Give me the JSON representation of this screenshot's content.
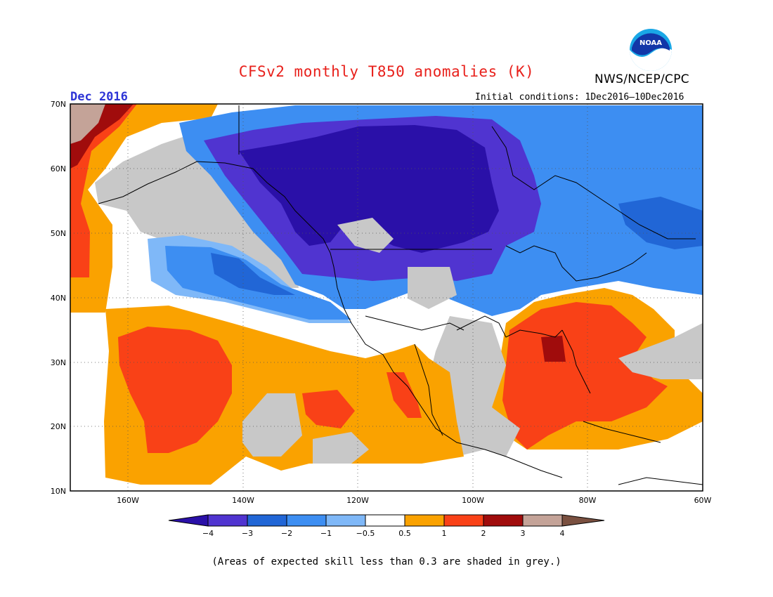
{
  "title": "CFSv2 monthly T850 anomalies (K)",
  "organization": "NWS/NCEP/CPC",
  "logo_text": "NOAA",
  "forecast_period": "Dec 2016",
  "initial_conditions": "Initial conditions: 1Dec2016–10Dec2016",
  "footnote": "(Areas of expected skill less than 0.3 are shaded in grey.)",
  "map": {
    "projection": "lat-lon",
    "lon_range": [
      -170,
      -60
    ],
    "lat_range": [
      10,
      70
    ],
    "lat_labels": [
      "70N",
      "60N",
      "50N",
      "40N",
      "30N",
      "20N",
      "10N"
    ],
    "lon_labels": [
      "160W",
      "140W",
      "120W",
      "100W",
      "80W",
      "60W"
    ],
    "gridlines": "dotted"
  },
  "colorbar": {
    "labels": [
      "−4",
      "−3",
      "−2",
      "−1",
      "−0.5",
      "0.5",
      "1",
      "2",
      "3",
      "4"
    ],
    "colors": [
      "#2a10a8",
      "#5034d0",
      "#2166d6",
      "#3d8ef2",
      "#7fb8f8",
      "#ffffff",
      "#faa200",
      "#f94117",
      "#a00c0c",
      "#c4a398",
      "#7a5040"
    ],
    "units": "K",
    "extends": "both"
  },
  "skill_mask_color": "#c8c8c8"
}
